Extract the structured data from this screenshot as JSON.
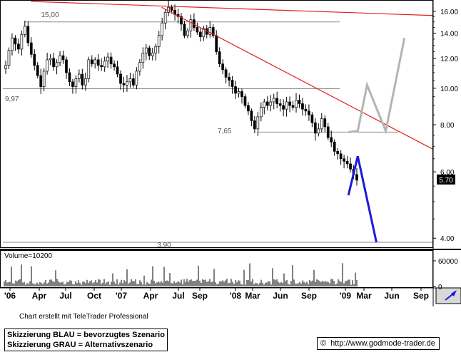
{
  "chart_data": [
    {
      "type": "candlestick",
      "title": "",
      "y_axis_side": "right",
      "ylim": [
        3.8,
        17.0
      ],
      "y_scale": "log",
      "y_ticks": [
        "4.00",
        "6.00",
        "8.00",
        "10.00",
        "12.00",
        "14.00",
        "16.00"
      ],
      "x_tick_labels": [
        "'06",
        "Apr",
        "Jul",
        "Oct",
        "'07",
        "Apr",
        "Jul",
        "Sep",
        "'08",
        "Mar",
        "Jun",
        "Sep",
        "'09",
        "Mar",
        "Jun",
        "Sep"
      ],
      "x_range": [
        "2006-01",
        "2009-11"
      ],
      "last_price_label": "5.70",
      "price_series_weekly_close": [
        11.5,
        12.6,
        13.6,
        13.1,
        12.7,
        13.9,
        14.6,
        13.2,
        12.3,
        11.5,
        10.8,
        10.1,
        11.1,
        11.9,
        12.0,
        11.4,
        11.7,
        12.2,
        11.9,
        11.0,
        10.4,
        10.1,
        10.6,
        10.9,
        10.2,
        10.6,
        11.9,
        11.6,
        11.9,
        11.5,
        11.4,
        11.8,
        12.1,
        11.6,
        11.4,
        10.9,
        10.3,
        10.2,
        10.4,
        10.6,
        10.2,
        11.1,
        11.7,
        12.4,
        12.8,
        12.2,
        12.4,
        12.9,
        13.8,
        14.9,
        15.9,
        16.4,
        16.1,
        15.7,
        15.5,
        14.8,
        13.8,
        14.2,
        15.2,
        14.5,
        14.1,
        13.7,
        14.4,
        13.9,
        14.5,
        13.8,
        12.5,
        11.6,
        11.2,
        10.7,
        10.5,
        10.1,
        9.7,
        9.8,
        9.5,
        9.0,
        8.7,
        8.2,
        7.8,
        8.4,
        8.9,
        9.2,
        9.0,
        9.2,
        9.4,
        9.1,
        9.0,
        8.8,
        9.2,
        9.0,
        8.9,
        9.3,
        9.1,
        8.8,
        8.7,
        8.5,
        8.1,
        7.6,
        7.8,
        8.3,
        7.9,
        7.4,
        7.2,
        6.8,
        6.7,
        6.5,
        6.4,
        6.3,
        6.1,
        5.9,
        5.7
      ],
      "annotations": [
        {
          "label": "15,00",
          "type": "horizontal_level",
          "value": 15.0
        },
        {
          "label": "9,97",
          "type": "horizontal_level",
          "value": 9.97
        },
        {
          "label": "7,65",
          "type": "horizontal_level",
          "value": 7.65
        },
        {
          "label": "3.90",
          "type": "horizontal_level",
          "value": 3.9
        }
      ],
      "trendlines": [
        {
          "color": "#e02020",
          "from": [
            "2006-04",
            17.0
          ],
          "to": [
            "2009-11",
            15.6
          ]
        },
        {
          "color": "#e02020",
          "from": [
            "2007-06",
            16.4
          ],
          "to": [
            "2009-11",
            6.9
          ]
        }
      ],
      "scenarios": [
        {
          "name": "Skizzierung BLAU",
          "color": "#1a1adc",
          "points": [
            [
              "2009-02",
              5.2
            ],
            [
              "2009-03",
              6.6
            ],
            [
              "2009-05",
              3.9
            ]
          ]
        },
        {
          "name": "Skizzierung GRAU",
          "color": "#b4b4b4",
          "points": [
            [
              "2009-02",
              7.65
            ],
            [
              "2009-03",
              7.7
            ],
            [
              "2009-04",
              10.2
            ],
            [
              "2009-06",
              7.7
            ],
            [
              "2009-08",
              13.6
            ]
          ]
        }
      ]
    },
    {
      "type": "bar",
      "title": "Volume=10200",
      "y_ticks": [
        "60000",
        "0"
      ],
      "ylim": [
        0,
        80000
      ]
    }
  ],
  "footer": {
    "credit": "Chart erstellt mit TeleTrader Professional",
    "legend_blue": "Skizzierung BLAU = bevorzugtes Szenario",
    "legend_grey": "Skizzierung GRAU = Alternativszenario",
    "website": "http://www.godmode-trader.de",
    "copyright_symbol": "©"
  },
  "icons": {
    "axis_tool": "chart-tool-icon"
  }
}
